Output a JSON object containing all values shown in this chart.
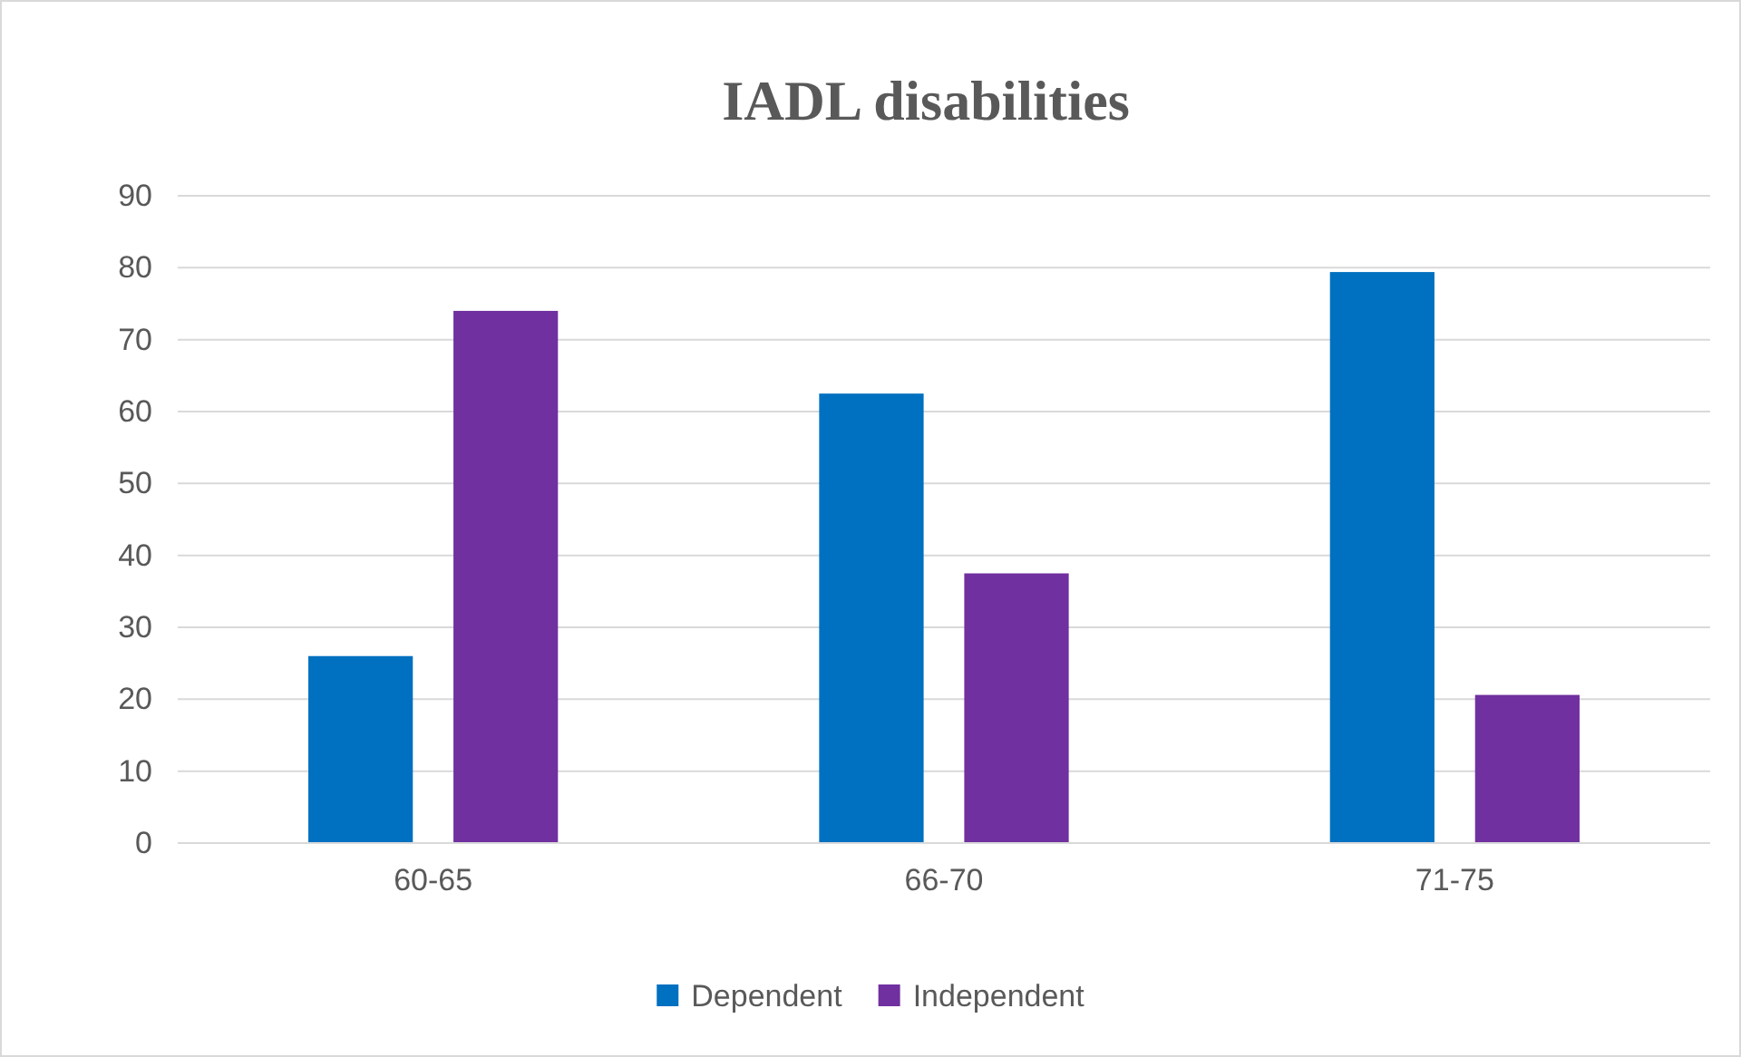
{
  "chart_data": {
    "type": "bar",
    "title": "IADL disabilities",
    "categories": [
      "60-65",
      "66-70",
      "71-75"
    ],
    "series": [
      {
        "name": "Dependent",
        "color": "#0070c0",
        "values": [
          26,
          62.5,
          79.4
        ]
      },
      {
        "name": "Independent",
        "color": "#7030a0",
        "values": [
          74,
          37.5,
          20.6
        ]
      }
    ],
    "ylim": [
      0,
      90
    ],
    "yticks": [
      0,
      10,
      20,
      30,
      40,
      50,
      60,
      70,
      80,
      90
    ],
    "grid": "y",
    "legend": "bottom"
  }
}
